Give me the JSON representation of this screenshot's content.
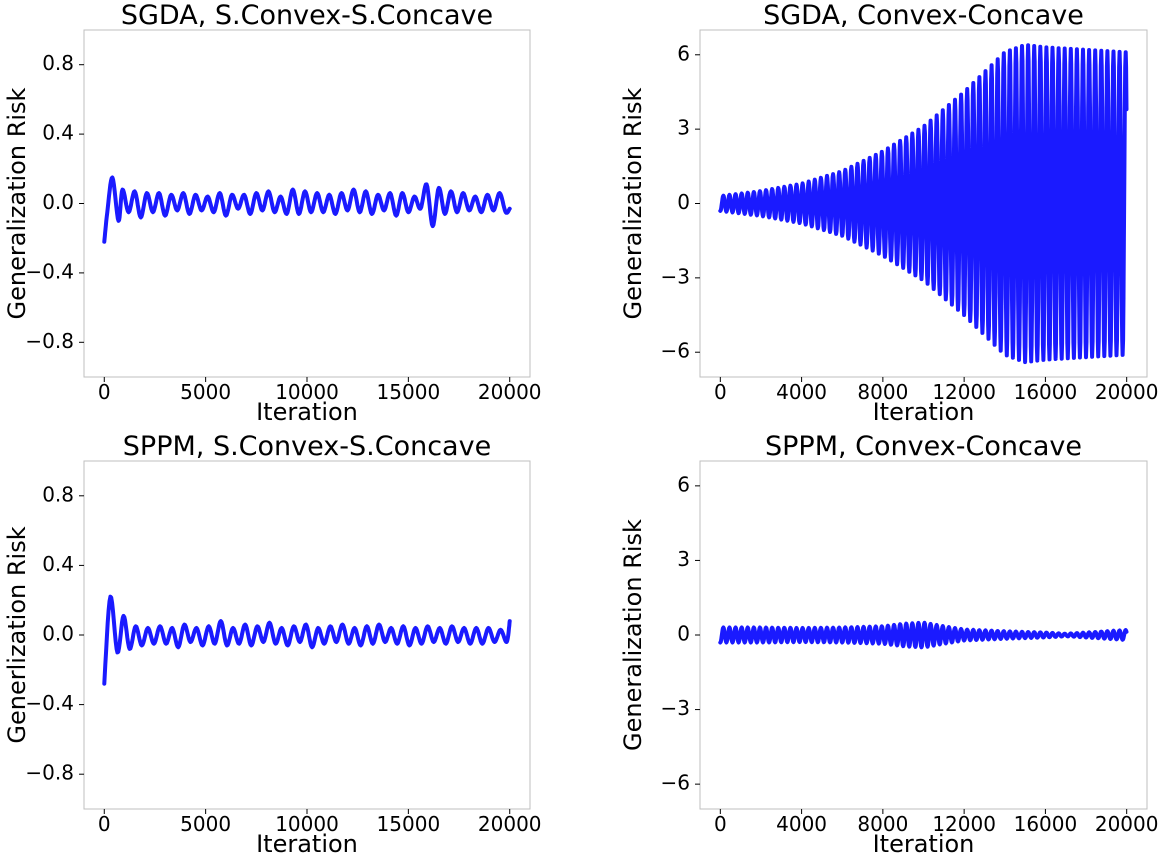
{
  "chart_data": [
    {
      "type": "line",
      "title": "SGDA, S.Convex-S.Concave",
      "xlabel": "Iteration",
      "ylabel": "Generalization Risk",
      "xlim": [
        -1000,
        21000
      ],
      "ylim": [
        -1.0,
        1.0
      ],
      "xticks": [
        0,
        5000,
        10000,
        15000,
        20000
      ],
      "xtick_labels": [
        "0",
        "5000",
        "10000",
        "15000",
        "20000"
      ],
      "yticks": [
        0.8,
        0.4,
        0.0,
        -0.4,
        -0.8
      ],
      "ytick_labels": [
        "0.8",
        "0.4",
        "0.0",
        "−0.4",
        "−0.8"
      ],
      "grid": false,
      "series": [
        {
          "color": "#1a1aff",
          "x": [
            0,
            150,
            400,
            700,
            900,
            1200,
            1500,
            1800,
            2100,
            2400,
            2700,
            3000,
            3300,
            3600,
            3900,
            4200,
            4500,
            4800,
            5100,
            5400,
            5700,
            6000,
            6300,
            6600,
            6900,
            7200,
            7500,
            7800,
            8100,
            8400,
            8700,
            9000,
            9300,
            9600,
            9900,
            10200,
            10500,
            10800,
            11100,
            11400,
            11700,
            12000,
            12300,
            12600,
            12900,
            13200,
            13500,
            13800,
            14100,
            14400,
            14700,
            15000,
            15300,
            15600,
            15900,
            16200,
            16500,
            16800,
            17100,
            17400,
            17700,
            18000,
            18300,
            18600,
            18900,
            19200,
            19500,
            19800,
            20000
          ],
          "y": [
            -0.22,
            -0.05,
            0.15,
            -0.1,
            0.08,
            -0.05,
            0.07,
            -0.08,
            0.06,
            -0.05,
            0.06,
            -0.07,
            0.05,
            -0.04,
            0.06,
            -0.06,
            0.05,
            -0.04,
            0.04,
            -0.05,
            0.06,
            -0.07,
            0.05,
            -0.03,
            0.05,
            -0.06,
            0.06,
            -0.04,
            0.07,
            -0.05,
            0.04,
            -0.06,
            0.08,
            -0.06,
            0.07,
            -0.05,
            0.06,
            -0.05,
            0.05,
            -0.06,
            0.06,
            -0.04,
            0.08,
            -0.05,
            0.07,
            -0.06,
            0.05,
            -0.04,
            0.06,
            -0.07,
            0.06,
            -0.05,
            0.04,
            -0.03,
            0.11,
            -0.13,
            0.09,
            -0.06,
            0.07,
            -0.05,
            0.06,
            -0.04,
            0.04,
            -0.05,
            0.05,
            -0.04,
            0.06,
            -0.05,
            -0.03
          ]
        }
      ]
    },
    {
      "type": "line",
      "title": "SGDA, Convex-Concave",
      "xlabel": "Iteration",
      "ylabel": "Generalization Risk",
      "xlim": [
        -1000,
        21000
      ],
      "ylim": [
        -7,
        7
      ],
      "xticks": [
        0,
        4000,
        8000,
        12000,
        16000,
        20000
      ],
      "xtick_labels": [
        "0",
        "4000",
        "8000",
        "12000",
        "16000",
        "20000"
      ],
      "yticks": [
        6,
        3,
        0,
        -3,
        -6
      ],
      "ytick_labels": [
        "6",
        "3",
        "0",
        "−3",
        "−6"
      ],
      "grid": false,
      "series": [
        {
          "color": "#1a1aff",
          "x": [
            0,
            2000,
            4000,
            6000,
            8000,
            10000,
            12000,
            13000,
            14000,
            15000,
            16000,
            18000,
            20000
          ],
          "amplitude": [
            0.3,
            0.5,
            0.8,
            1.3,
            2.1,
            3.1,
            4.5,
            5.3,
            6.1,
            6.4,
            6.3,
            6.2,
            6.1
          ],
          "period": 300
        }
      ]
    },
    {
      "type": "line",
      "title": "SPPM, S.Convex-S.Concave",
      "xlabel": "Iteration",
      "ylabel": "Generlization Risk",
      "xlim": [
        -1000,
        21000
      ],
      "ylim": [
        -1.0,
        1.0
      ],
      "xticks": [
        0,
        5000,
        10000,
        15000,
        20000
      ],
      "xtick_labels": [
        "0",
        "5000",
        "10000",
        "15000",
        "20000"
      ],
      "yticks": [
        0.8,
        0.4,
        0.0,
        -0.4,
        -0.8
      ],
      "ytick_labels": [
        "0.8",
        "0.4",
        "0.0",
        "−0.4",
        "−0.8"
      ],
      "grid": false,
      "series": [
        {
          "color": "#1a1aff",
          "x": [
            0,
            300,
            650,
            950,
            1250,
            1550,
            1850,
            2150,
            2450,
            2750,
            3050,
            3350,
            3650,
            3950,
            4250,
            4550,
            4850,
            5150,
            5450,
            5750,
            6050,
            6350,
            6650,
            6950,
            7250,
            7550,
            7850,
            8150,
            8450,
            8750,
            9050,
            9350,
            9650,
            9950,
            10250,
            10550,
            10850,
            11150,
            11450,
            11750,
            12050,
            12350,
            12650,
            12950,
            13250,
            13550,
            13850,
            14150,
            14450,
            14750,
            15050,
            15350,
            15650,
            15950,
            16250,
            16550,
            16850,
            17150,
            17450,
            17750,
            18050,
            18350,
            18650,
            18950,
            19250,
            19550,
            19850,
            20000
          ],
          "y": [
            -0.28,
            0.22,
            -0.1,
            0.11,
            -0.08,
            0.05,
            -0.06,
            0.04,
            -0.05,
            0.05,
            -0.05,
            0.04,
            -0.07,
            0.06,
            -0.04,
            0.04,
            -0.06,
            0.05,
            -0.05,
            0.08,
            -0.06,
            0.04,
            -0.05,
            0.06,
            -0.06,
            0.05,
            -0.04,
            0.07,
            -0.05,
            0.04,
            -0.06,
            0.05,
            -0.04,
            0.06,
            -0.07,
            0.04,
            -0.05,
            0.05,
            -0.04,
            0.06,
            -0.05,
            0.04,
            -0.06,
            0.05,
            -0.05,
            0.06,
            -0.04,
            0.04,
            -0.05,
            0.05,
            -0.06,
            0.04,
            -0.05,
            0.05,
            -0.04,
            0.04,
            -0.05,
            0.05,
            -0.04,
            0.04,
            -0.05,
            0.04,
            -0.05,
            0.04,
            -0.04,
            0.03,
            -0.04,
            0.08
          ]
        }
      ]
    },
    {
      "type": "line",
      "title": "SPPM, Convex-Concave",
      "xlabel": "Iteration",
      "ylabel": "Generalization Risk",
      "xlim": [
        -1000,
        21000
      ],
      "ylim": [
        -7,
        7
      ],
      "xticks": [
        0,
        4000,
        8000,
        12000,
        16000,
        20000
      ],
      "xtick_labels": [
        "0",
        "4000",
        "8000",
        "12000",
        "16000",
        "20000"
      ],
      "yticks": [
        6,
        3,
        0,
        -3,
        -6
      ],
      "ytick_labels": [
        "6",
        "3",
        "0",
        "−3",
        "−6"
      ],
      "grid": false,
      "series": [
        {
          "color": "#1a1aff",
          "x": [
            0,
            2000,
            4000,
            6000,
            8000,
            9000,
            10000,
            11000,
            12000,
            14000,
            16000,
            17000,
            18000,
            19000,
            20000
          ],
          "amplitude": [
            0.3,
            0.3,
            0.28,
            0.3,
            0.35,
            0.45,
            0.5,
            0.35,
            0.22,
            0.15,
            0.1,
            0.05,
            0.1,
            0.15,
            0.2
          ],
          "period": 300
        }
      ]
    }
  ]
}
